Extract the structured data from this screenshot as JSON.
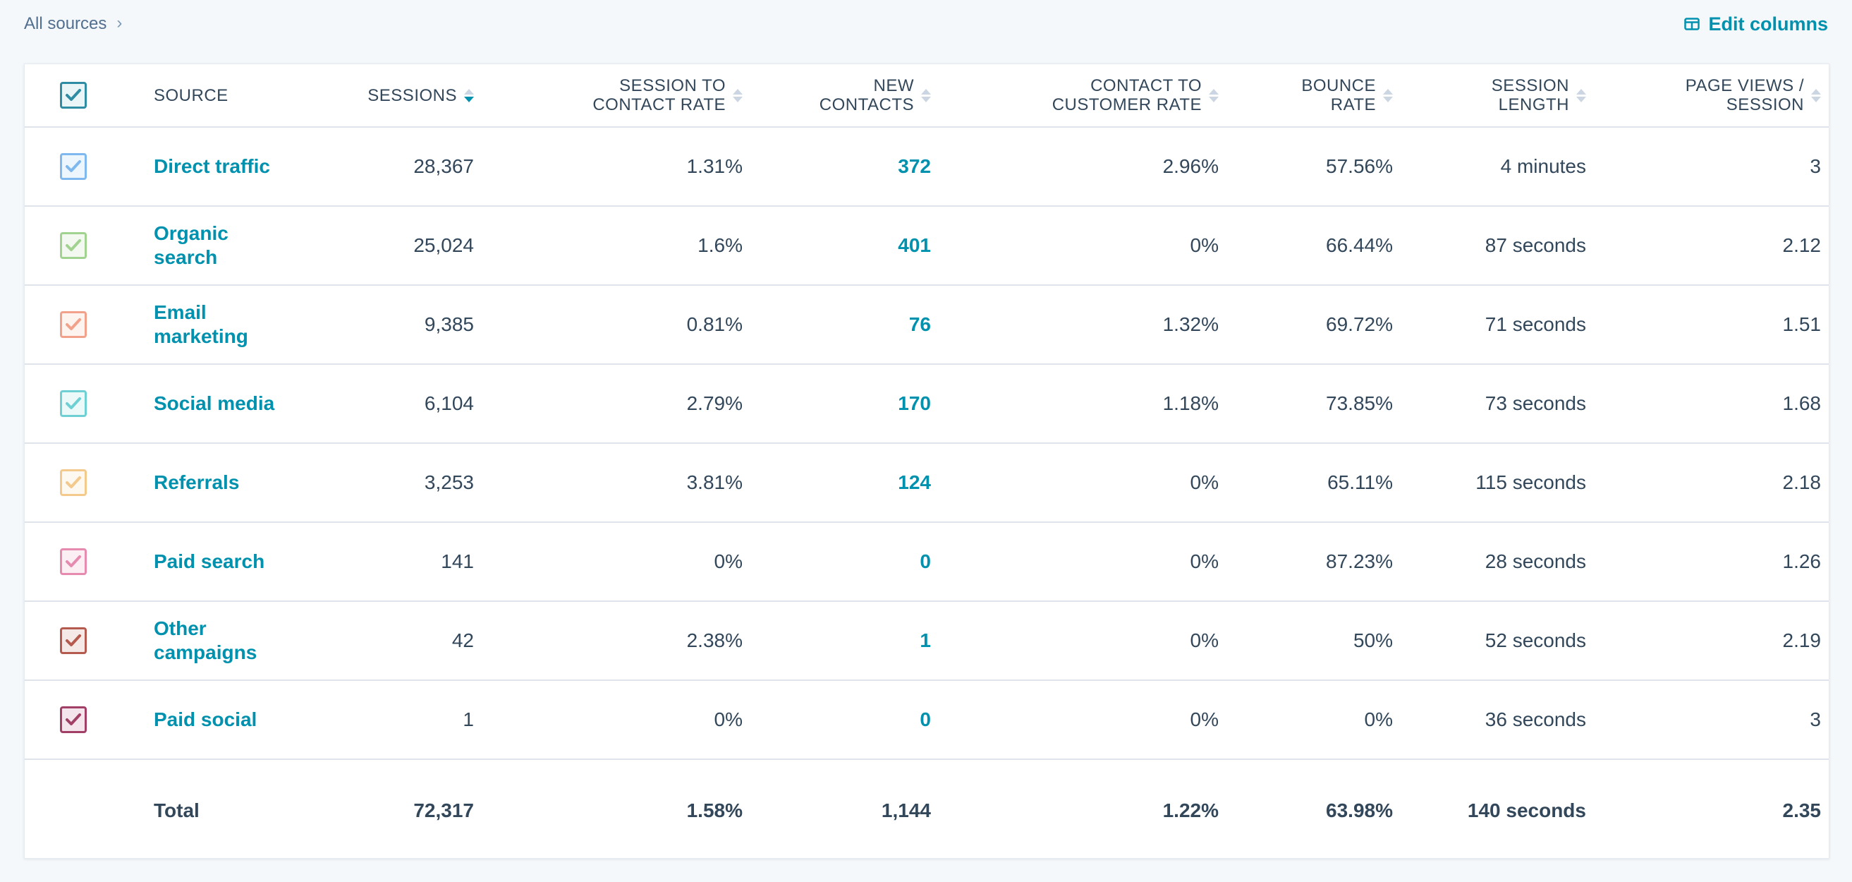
{
  "breadcrumb": {
    "label": "All sources",
    "chevron": "›"
  },
  "toolbar": {
    "edit_columns_label": "Edit columns",
    "edit_columns_icon": "table-columns-icon"
  },
  "header": {
    "source": "SOURCE",
    "sessions": "SESSIONS",
    "session_to_contact_rate_line1": "SESSION TO",
    "session_to_contact_rate_line2": "CONTACT RATE",
    "new_contacts_line1": "NEW",
    "new_contacts_line2": "CONTACTS",
    "contact_to_customer_rate_line1": "CONTACT TO",
    "contact_to_customer_rate_line2": "CUSTOMER RATE",
    "bounce_rate_line1": "BOUNCE",
    "bounce_rate_line2": "RATE",
    "session_length_line1": "SESSION",
    "session_length_line2": "LENGTH",
    "page_views_line1": "PAGE VIEWS /",
    "page_views_line2": "SESSION",
    "checkbox_color": "#2e8ca3",
    "sort_active_color": "#0091ae"
  },
  "rows": [
    {
      "source_line1": "Direct traffic",
      "source_line2": "",
      "color": "#7fb8ef",
      "sessions": "28,367",
      "session_to_contact_rate": "1.31%",
      "new_contacts": "372",
      "contact_to_customer_rate": "2.96%",
      "bounce_rate": "57.56%",
      "session_length": "4 minutes",
      "page_views_per_session": "3"
    },
    {
      "source_line1": "Organic",
      "source_line2": "search",
      "color": "#a2d28f",
      "sessions": "25,024",
      "session_to_contact_rate": "1.6%",
      "new_contacts": "401",
      "contact_to_customer_rate": "0%",
      "bounce_rate": "66.44%",
      "session_length": "87 seconds",
      "page_views_per_session": "2.12"
    },
    {
      "source_line1": "Email",
      "source_line2": "marketing",
      "color": "#f2a28a",
      "sessions": "9,385",
      "session_to_contact_rate": "0.81%",
      "new_contacts": "76",
      "contact_to_customer_rate": "1.32%",
      "bounce_rate": "69.72%",
      "session_length": "71 seconds",
      "page_views_per_session": "1.51"
    },
    {
      "source_line1": "Social media",
      "source_line2": "",
      "color": "#6fd0d4",
      "sessions": "6,104",
      "session_to_contact_rate": "2.79%",
      "new_contacts": "170",
      "contact_to_customer_rate": "1.18%",
      "bounce_rate": "73.85%",
      "session_length": "73 seconds",
      "page_views_per_session": "1.68"
    },
    {
      "source_line1": "Referrals",
      "source_line2": "",
      "color": "#f3c98c",
      "sessions": "3,253",
      "session_to_contact_rate": "3.81%",
      "new_contacts": "124",
      "contact_to_customer_rate": "0%",
      "bounce_rate": "65.11%",
      "session_length": "115 seconds",
      "page_views_per_session": "2.18"
    },
    {
      "source_line1": "Paid search",
      "source_line2": "",
      "color": "#e78ab0",
      "sessions": "141",
      "session_to_contact_rate": "0%",
      "new_contacts": "0",
      "contact_to_customer_rate": "0%",
      "bounce_rate": "87.23%",
      "session_length": "28 seconds",
      "page_views_per_session": "1.26"
    },
    {
      "source_line1": "Other",
      "source_line2": "campaigns",
      "color": "#b55a4f",
      "sessions": "42",
      "session_to_contact_rate": "2.38%",
      "new_contacts": "1",
      "contact_to_customer_rate": "0%",
      "bounce_rate": "50%",
      "session_length": "52 seconds",
      "page_views_per_session": "2.19"
    },
    {
      "source_line1": "Paid social",
      "source_line2": "",
      "color": "#a23f66",
      "sessions": "1",
      "session_to_contact_rate": "0%",
      "new_contacts": "0",
      "contact_to_customer_rate": "0%",
      "bounce_rate": "0%",
      "session_length": "36 seconds",
      "page_views_per_session": "3"
    }
  ],
  "totals": {
    "label": "Total",
    "sessions": "72,317",
    "session_to_contact_rate": "1.58%",
    "new_contacts": "1,144",
    "contact_to_customer_rate": "1.22%",
    "bounce_rate": "63.98%",
    "session_length": "140 seconds",
    "page_views_per_session": "2.35"
  }
}
